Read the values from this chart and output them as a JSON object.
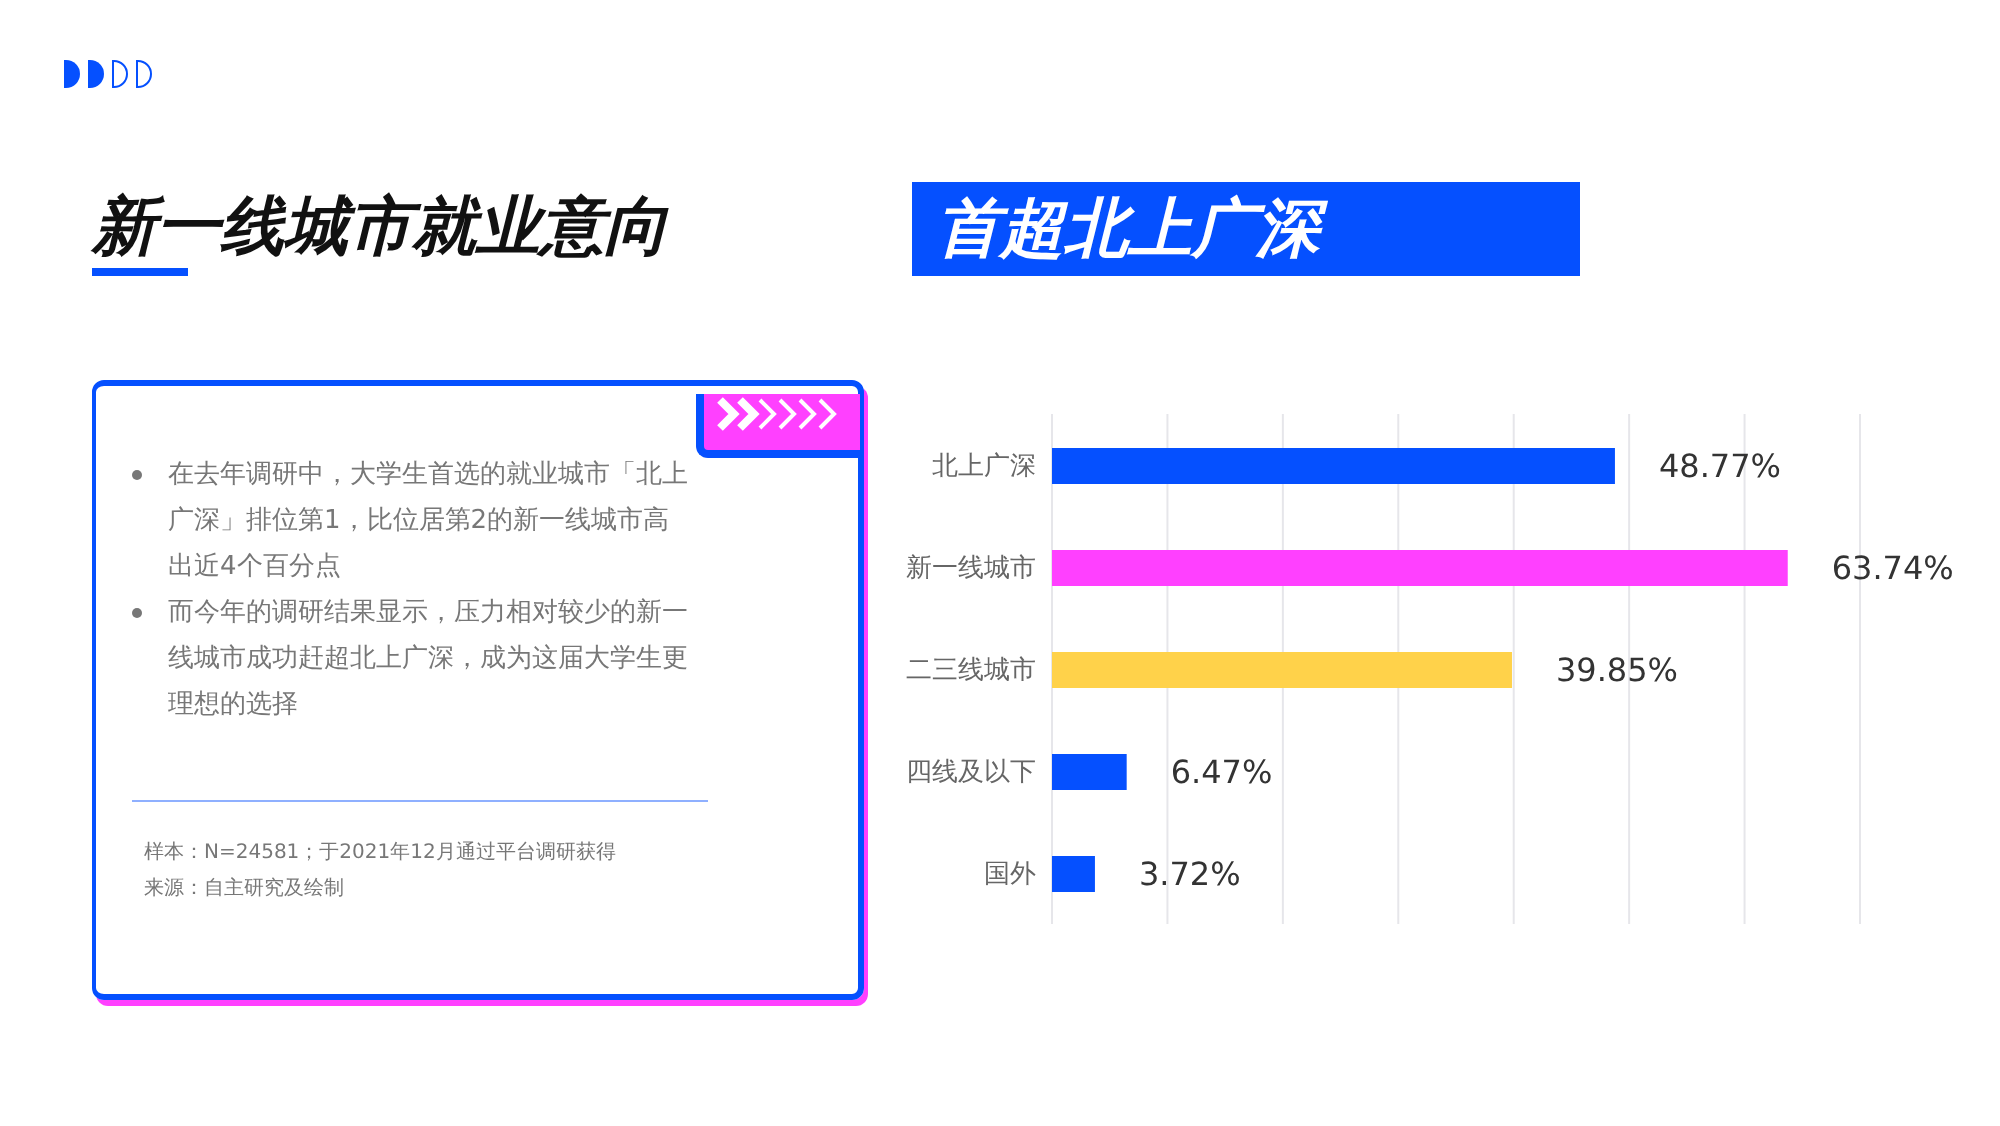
{
  "chart_data": {
    "type": "bar",
    "orientation": "horizontal",
    "title": "新一线城市就业意向",
    "subtitle": "首超北上广深",
    "categories": [
      "北上广深",
      "新一线城市",
      "二三线城市",
      "四线及以下",
      "国外"
    ],
    "values": [
      48.77,
      63.74,
      39.85,
      6.47,
      3.72
    ],
    "colors": [
      "#0550ff",
      "#ff40ff",
      "#ffd24a",
      "#0550ff",
      "#0550ff"
    ],
    "value_labels": [
      "48.77%",
      "63.74%",
      "39.85%",
      "6.47%",
      "3.72%"
    ],
    "grid": "x",
    "tick_labels": "y",
    "annotations": [
      "在去年调研中，大学生首选的就业城市「北上广深」排位第1，比位居第2的新一线城市高出近4个百分点",
      "而今年的调研结果显示，压力相对较少的新一线城市成功赶超北上广深，成为这届大学生更理想的选择",
      "样本：N=24581；于2021年12月通过平台调研获得",
      "来源：自主研究及绘制"
    ]
  }
}
